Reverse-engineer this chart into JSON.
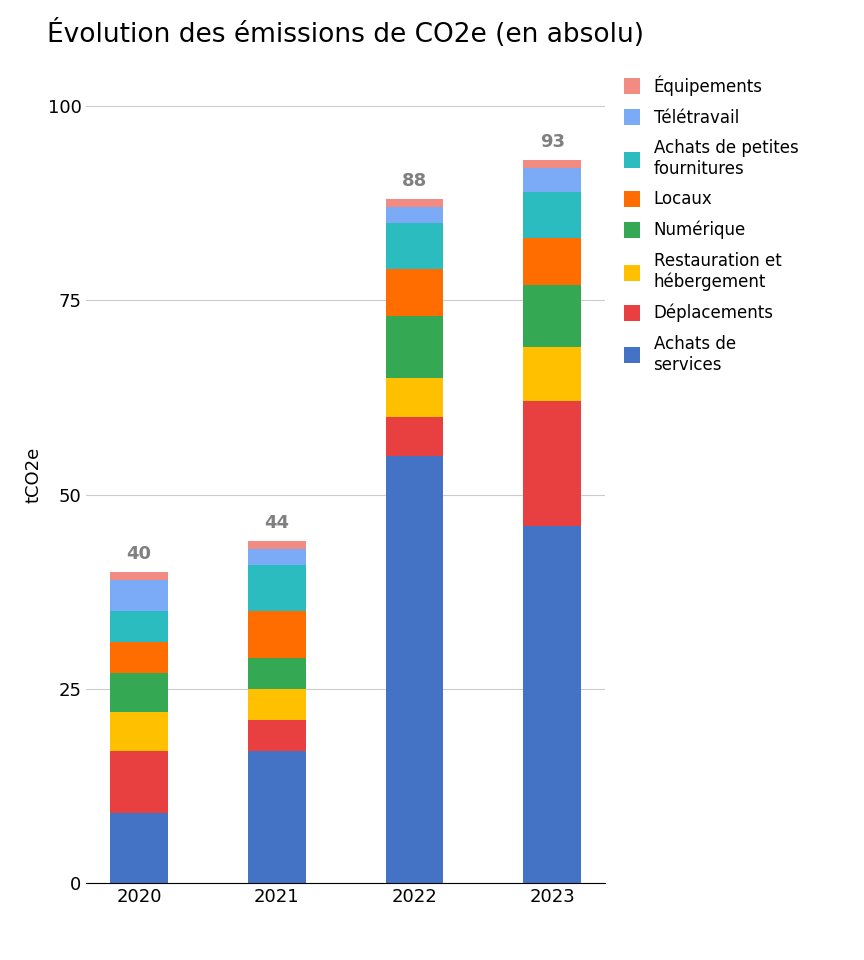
{
  "title": "Évolution des émissions de CO2e (en absolu)",
  "ylabel": "tCO2e",
  "years": [
    "2020",
    "2021",
    "2022",
    "2023"
  ],
  "totals": [
    40,
    44,
    88,
    93
  ],
  "categories": [
    "Achats de services",
    "Déplacements",
    "Restauration et hébergement",
    "Numérique",
    "Locaux",
    "Achats de petites fournitures",
    "Télétravail",
    "Équipements"
  ],
  "legend_labels": [
    "Équipements",
    "Télétravail",
    "Achats de petites\nfournitures",
    "Locaux",
    "Numérique",
    "Restauration et\nhébergement",
    "Déplacements",
    "Achats de\nservices"
  ],
  "colors": [
    "#4472C4",
    "#E84040",
    "#FFC000",
    "#34A853",
    "#FF6D00",
    "#2BBCBF",
    "#7BAAF7",
    "#F28B82"
  ],
  "values": {
    "Achats de services": [
      9,
      17,
      55,
      46
    ],
    "Déplacements": [
      8,
      4,
      5,
      16
    ],
    "Restauration et hébergement": [
      5,
      4,
      5,
      7
    ],
    "Numérique": [
      5,
      4,
      8,
      8
    ],
    "Locaux": [
      4,
      6,
      6,
      6
    ],
    "Achats de petites fournitures": [
      4,
      6,
      6,
      6
    ],
    "Télétravail": [
      4,
      2,
      2,
      3
    ],
    "Équipements": [
      1,
      1,
      1,
      1
    ]
  },
  "ylim": [
    0,
    105
  ],
  "yticks": [
    0,
    25,
    50,
    75,
    100
  ],
  "background_color": "#ffffff",
  "grid_color": "#cccccc",
  "total_label_color": "#808080",
  "total_fontsize": 13,
  "title_fontsize": 19,
  "legend_fontsize": 12,
  "tick_fontsize": 13
}
